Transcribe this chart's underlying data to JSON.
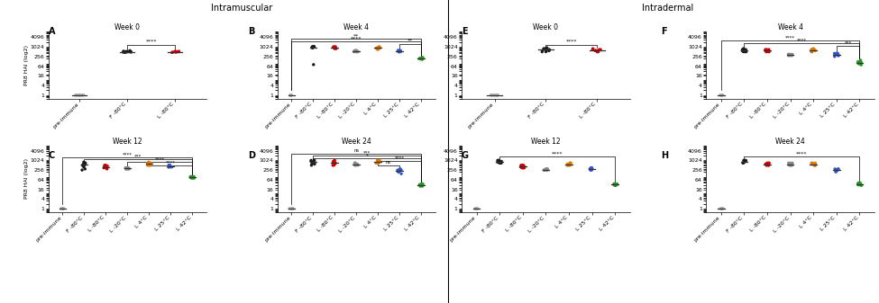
{
  "title_left": "Intramuscular",
  "title_right": "Intradermal",
  "ylabel": "PR8 HAI (log2)",
  "colors": {
    "pre": "#aaaaaa",
    "F80": "#1a1a1a",
    "L80": "#cc0000",
    "L20": "#888888",
    "L4": "#e07800",
    "L25": "#3355cc",
    "L42": "#229922"
  },
  "x_labels_short": [
    "pre-immune",
    "F -80°C",
    "L -80°C"
  ],
  "x_labels_full": [
    "pre-immune",
    "F -80°C",
    "L -80°C",
    "L -20°C",
    "L 4°C",
    "L 25°C",
    "L 42°C"
  ],
  "yticks": [
    1,
    4,
    16,
    64,
    256,
    1024,
    4096
  ],
  "ytick_labels": [
    "1",
    "4",
    "16",
    "64",
    "256",
    "1024",
    "4096"
  ]
}
